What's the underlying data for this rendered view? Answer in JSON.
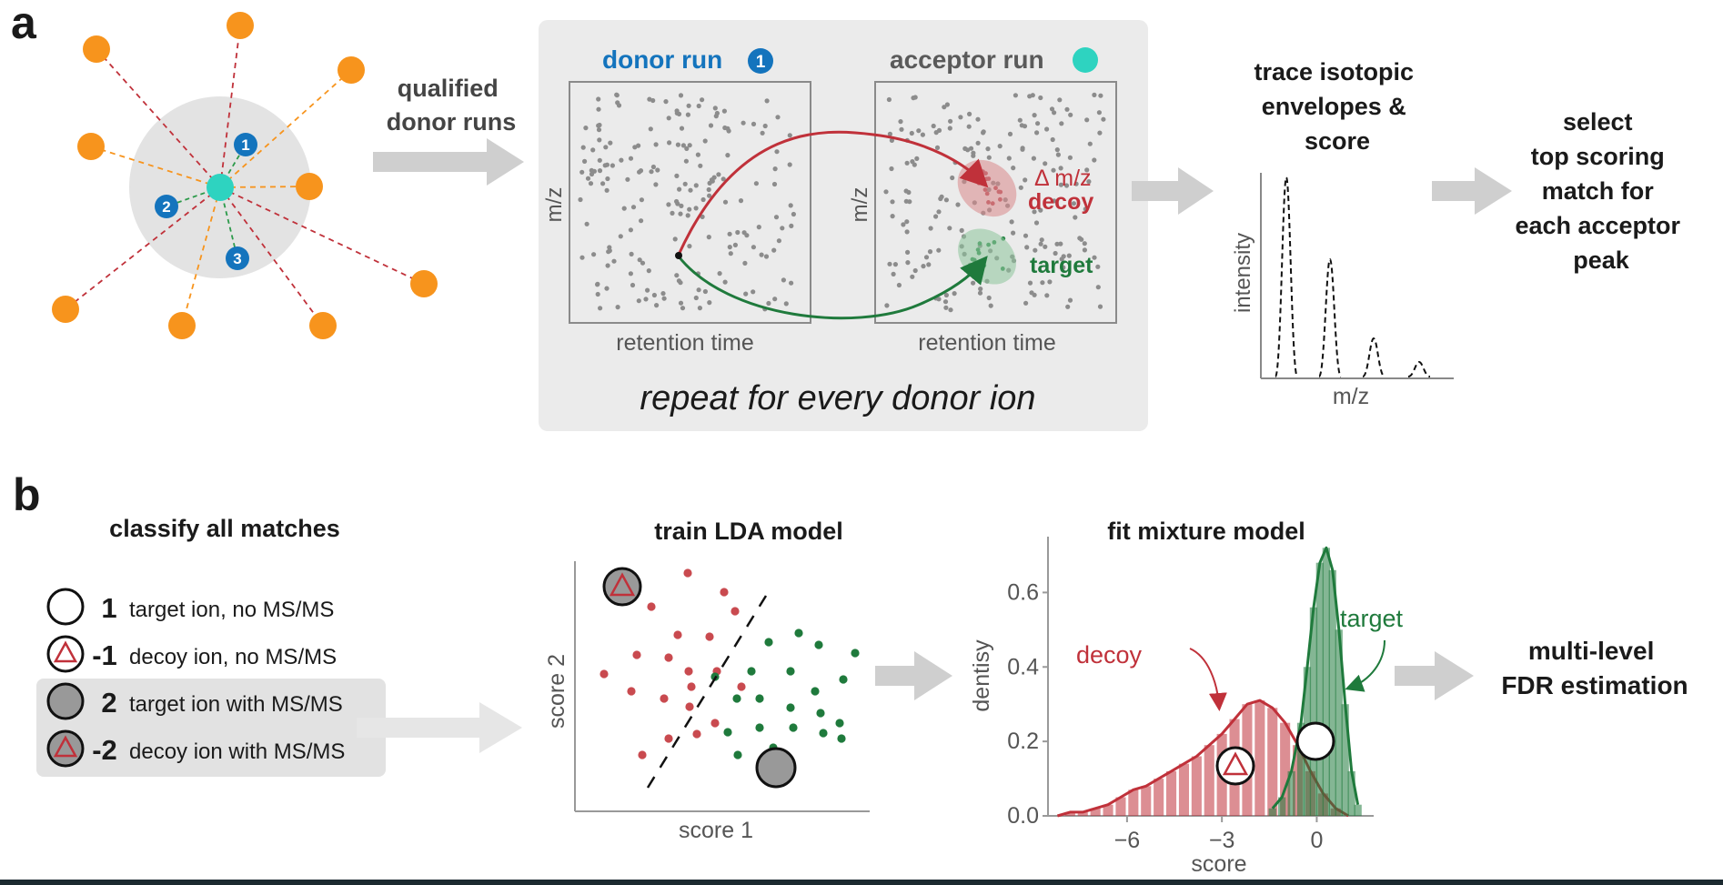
{
  "panel_a": {
    "label": "a",
    "arrow1_label_lines": [
      "qualified",
      "donor runs"
    ],
    "box_caption": "repeat for every donor ion",
    "donor_title": "donor run",
    "donor_badge": "1",
    "acceptor_title": "acceptor run",
    "xaxis_label": "retention time",
    "yaxis_label": "m/z",
    "delta_label": "Δ m/z",
    "decoy_label": "decoy",
    "target_label": "target",
    "hub_badges": [
      "1",
      "2",
      "3"
    ],
    "trace_title_lines": [
      "trace isotopic",
      "envelopes &",
      "score"
    ],
    "trace_ylabel": "intensity",
    "trace_xlabel": "m/z",
    "select_lines": [
      "select",
      "top scoring",
      "match for",
      "each acceptor",
      "peak"
    ]
  },
  "panel_b": {
    "label": "b",
    "classify_title": "classify all matches",
    "legend": [
      {
        "value": "1",
        "text": "target ion, no MS/MS",
        "symbol": "open-circle"
      },
      {
        "value": "-1",
        "text": "decoy ion, no MS/MS",
        "symbol": "open-circle-triangle"
      },
      {
        "value": "2",
        "text": "target ion with MS/MS",
        "symbol": "filled-circle"
      },
      {
        "value": "-2",
        "text": "decoy ion with MS/MS",
        "symbol": "filled-circle-triangle"
      }
    ],
    "lda_title": "train LDA model",
    "lda_xlabel": "score 1",
    "lda_ylabel": "score 2",
    "mix_title": "fit mixture model",
    "fdr_lines": [
      "multi-level",
      "FDR estimation"
    ]
  },
  "chart_data": {
    "type": "area",
    "title": "fit mixture model",
    "xlabel": "score",
    "ylabel": "dentisy",
    "xlim": [
      -8.5,
      1.8
    ],
    "ylim": [
      0,
      0.75
    ],
    "xticks": [
      -6,
      -3,
      0
    ],
    "xtick_labels": [
      "−6",
      "−3",
      "0"
    ],
    "yticks": [
      0.0,
      0.2,
      0.4,
      0.6
    ],
    "ytick_labels": [
      "0.0",
      "0.2",
      "0.4",
      "0.6"
    ],
    "series": [
      {
        "name": "decoy",
        "color": "#c0313a",
        "x": [
          -8.2,
          -7.8,
          -7.4,
          -7.0,
          -6.6,
          -6.2,
          -5.8,
          -5.4,
          -5.0,
          -4.6,
          -4.2,
          -3.8,
          -3.4,
          -3.0,
          -2.6,
          -2.2,
          -1.8,
          -1.4,
          -1.0,
          -0.6,
          -0.2,
          0.2,
          0.6,
          1.0
        ],
        "values": [
          0.0,
          0.01,
          0.01,
          0.02,
          0.03,
          0.05,
          0.07,
          0.08,
          0.1,
          0.12,
          0.14,
          0.16,
          0.19,
          0.22,
          0.26,
          0.3,
          0.31,
          0.29,
          0.25,
          0.19,
          0.12,
          0.06,
          0.02,
          0.0
        ]
      },
      {
        "name": "target",
        "color": "#1f7a3c",
        "x": [
          -1.4,
          -1.1,
          -0.8,
          -0.5,
          -0.3,
          -0.1,
          0.1,
          0.3,
          0.5,
          0.7,
          0.9,
          1.1,
          1.3
        ],
        "values": [
          0.02,
          0.05,
          0.12,
          0.25,
          0.4,
          0.56,
          0.68,
          0.72,
          0.66,
          0.5,
          0.3,
          0.12,
          0.03
        ]
      }
    ]
  },
  "colors": {
    "orange": "#f7941d",
    "teal": "#2ed3c0",
    "blue": "#1474bd",
    "red": "#c0313a",
    "green": "#1f7a3c",
    "grey_panel": "#ebebeb",
    "arrow": "#cfcfcf"
  }
}
